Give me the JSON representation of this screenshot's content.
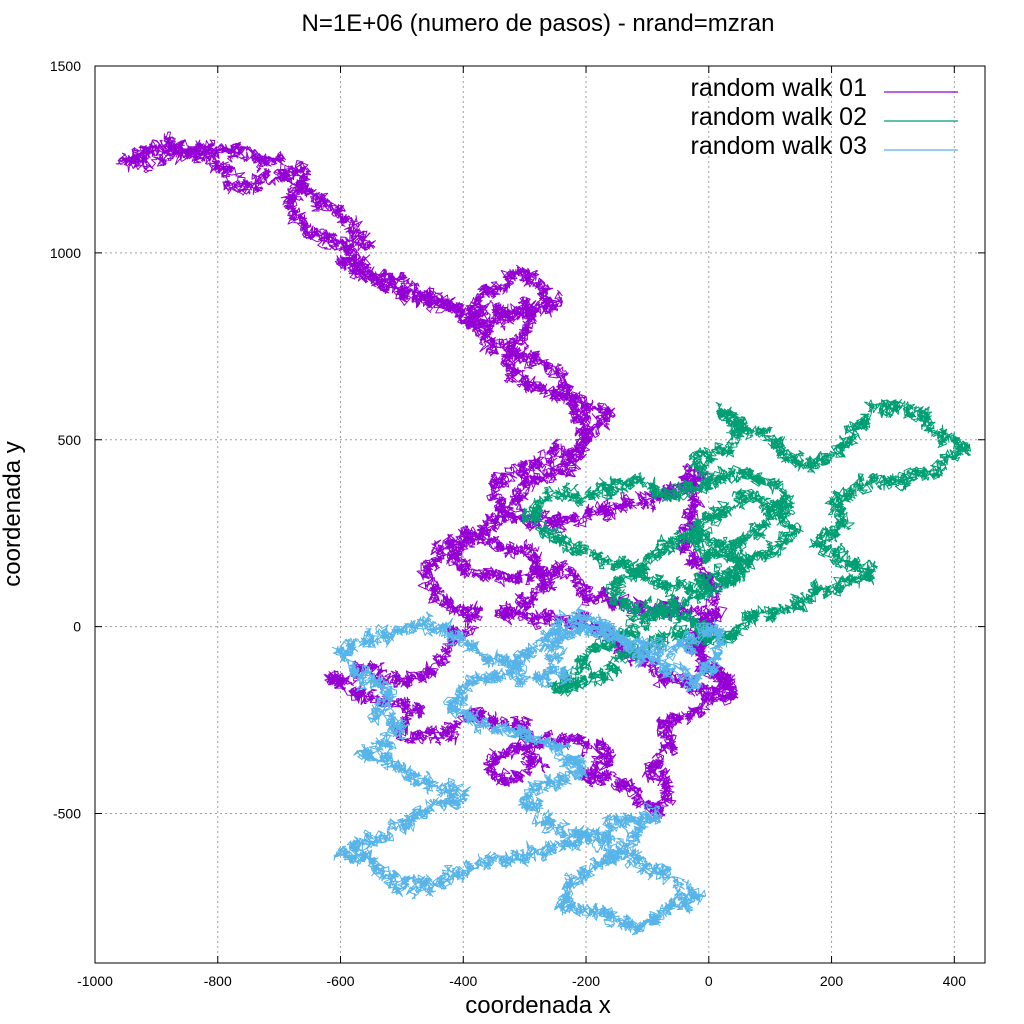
{
  "chart_data": {
    "type": "line",
    "title": "N=1E+06 (numero de pasos) - nrand=mzran",
    "xlabel": "coordenada x",
    "ylabel": "coordenada y",
    "xlim": [
      -1000,
      450
    ],
    "ylim": [
      -900,
      1500
    ],
    "xticks": [
      -1000,
      -800,
      -600,
      -400,
      -200,
      0,
      200,
      400
    ],
    "yticks": [
      -500,
      0,
      500,
      1000,
      1500
    ],
    "grid": true,
    "legend_position": "top-right",
    "series": [
      {
        "name": "random walk 01",
        "color": "#9400d3",
        "waypoints": [
          [
            0,
            0
          ],
          [
            -60,
            60
          ],
          [
            -120,
            50
          ],
          [
            -200,
            80
          ],
          [
            -240,
            150
          ],
          [
            -320,
            130
          ],
          [
            -380,
            140
          ],
          [
            -420,
            180
          ],
          [
            -400,
            240
          ],
          [
            -330,
            300
          ],
          [
            -300,
            380
          ],
          [
            -240,
            410
          ],
          [
            -200,
            500
          ],
          [
            -220,
            580
          ],
          [
            -240,
            660
          ],
          [
            -290,
            720
          ],
          [
            -350,
            760
          ],
          [
            -390,
            820
          ],
          [
            -360,
            900
          ],
          [
            -300,
            960
          ],
          [
            -270,
            910
          ],
          [
            -250,
            860
          ],
          [
            -330,
            840
          ],
          [
            -400,
            850
          ],
          [
            -460,
            880
          ],
          [
            -520,
            900
          ],
          [
            -560,
            950
          ],
          [
            -590,
            1020
          ],
          [
            -660,
            1060
          ],
          [
            -690,
            1140
          ],
          [
            -650,
            1190
          ],
          [
            -680,
            1230
          ],
          [
            -740,
            1260
          ],
          [
            -800,
            1280
          ],
          [
            -870,
            1270
          ],
          [
            -930,
            1250
          ],
          [
            -950,
            1245
          ],
          [
            -880,
            1300
          ],
          [
            -810,
            1250
          ],
          [
            -760,
            1180
          ],
          [
            -700,
            1210
          ],
          [
            -640,
            1150
          ],
          [
            -600,
            1090
          ],
          [
            -560,
            1020
          ],
          [
            -600,
            980
          ],
          [
            -480,
            900
          ],
          [
            -420,
            860
          ],
          [
            -380,
            810
          ],
          [
            -330,
            830
          ],
          [
            -280,
            850
          ],
          [
            -330,
            700
          ],
          [
            -290,
            640
          ],
          [
            -200,
            600
          ],
          [
            -160,
            560
          ],
          [
            -220,
            480
          ],
          [
            -280,
            440
          ],
          [
            -350,
            380
          ],
          [
            -330,
            300
          ],
          [
            -260,
            270
          ],
          [
            -180,
            310
          ],
          [
            -120,
            330
          ],
          [
            -60,
            360
          ],
          [
            -20,
            420
          ],
          [
            -30,
            300
          ],
          [
            -40,
            220
          ],
          [
            0,
            120
          ],
          [
            10,
            30
          ],
          [
            -20,
            -40
          ],
          [
            0,
            -120
          ],
          [
            40,
            -160
          ],
          [
            -20,
            -220
          ],
          [
            -80,
            -260
          ],
          [
            -60,
            -320
          ],
          [
            -100,
            -380
          ],
          [
            -60,
            -430
          ],
          [
            -80,
            -490
          ],
          [
            -140,
            -420
          ],
          [
            -200,
            -400
          ],
          [
            -160,
            -340
          ],
          [
            -220,
            -300
          ],
          [
            -300,
            -320
          ],
          [
            -360,
            -360
          ],
          [
            -340,
            -410
          ],
          [
            -280,
            -380
          ],
          [
            -300,
            -260
          ],
          [
            -380,
            -240
          ],
          [
            -440,
            -300
          ],
          [
            -500,
            -280
          ],
          [
            -470,
            -230
          ],
          [
            -560,
            -190
          ],
          [
            -620,
            -140
          ],
          [
            -560,
            -120
          ],
          [
            -500,
            -150
          ],
          [
            -440,
            -100
          ],
          [
            -420,
            -30
          ],
          [
            -380,
            40
          ],
          [
            -430,
            60
          ],
          [
            -460,
            120
          ],
          [
            -440,
            200
          ],
          [
            -400,
            250
          ],
          [
            -350,
            230
          ],
          [
            -290,
            180
          ],
          [
            -260,
            120
          ],
          [
            -300,
            60
          ],
          [
            -340,
            40
          ],
          [
            -260,
            20
          ],
          [
            -180,
            0
          ],
          [
            -130,
            -60
          ],
          [
            -100,
            -100
          ],
          [
            -60,
            -150
          ],
          [
            -10,
            -160
          ],
          [
            40,
            -180
          ],
          [
            10,
            -120
          ],
          [
            -30,
            -60
          ],
          [
            0,
            0
          ]
        ]
      },
      {
        "name": "random walk 02",
        "color": "#009e73",
        "waypoints": [
          [
            0,
            0
          ],
          [
            -60,
            30
          ],
          [
            -120,
            50
          ],
          [
            -160,
            100
          ],
          [
            -120,
            150
          ],
          [
            -180,
            190
          ],
          [
            -240,
            230
          ],
          [
            -300,
            290
          ],
          [
            -260,
            340
          ],
          [
            -190,
            360
          ],
          [
            -120,
            390
          ],
          [
            -60,
            340
          ],
          [
            0,
            380
          ],
          [
            -20,
            440
          ],
          [
            30,
            480
          ],
          [
            50,
            540
          ],
          [
            20,
            570
          ],
          [
            80,
            520
          ],
          [
            120,
            470
          ],
          [
            160,
            430
          ],
          [
            200,
            460
          ],
          [
            240,
            530
          ],
          [
            280,
            590
          ],
          [
            340,
            580
          ],
          [
            370,
            520
          ],
          [
            420,
            480
          ],
          [
            380,
            440
          ],
          [
            320,
            400
          ],
          [
            250,
            380
          ],
          [
            200,
            330
          ],
          [
            220,
            270
          ],
          [
            180,
            220
          ],
          [
            230,
            170
          ],
          [
            270,
            150
          ],
          [
            210,
            110
          ],
          [
            160,
            80
          ],
          [
            120,
            40
          ],
          [
            80,
            30
          ],
          [
            40,
            0
          ],
          [
            20,
            -40
          ],
          [
            -20,
            -20
          ],
          [
            -80,
            -40
          ],
          [
            -120,
            -60
          ],
          [
            -160,
            -110
          ],
          [
            -200,
            -150
          ],
          [
            -250,
            -170
          ],
          [
            -220,
            -120
          ],
          [
            -160,
            -40
          ],
          [
            -100,
            20
          ],
          [
            -60,
            60
          ],
          [
            -20,
            80
          ],
          [
            40,
            120
          ],
          [
            60,
            170
          ],
          [
            20,
            220
          ],
          [
            -40,
            250
          ],
          [
            -80,
            200
          ],
          [
            -120,
            150
          ],
          [
            -70,
            100
          ],
          [
            -10,
            120
          ],
          [
            40,
            160
          ],
          [
            100,
            200
          ],
          [
            140,
            260
          ],
          [
            110,
            320
          ],
          [
            60,
            350
          ],
          [
            10,
            300
          ],
          [
            -30,
            240
          ],
          [
            0,
            180
          ],
          [
            50,
            220
          ],
          [
            90,
            280
          ],
          [
            130,
            340
          ],
          [
            80,
            400
          ],
          [
            30,
            420
          ],
          [
            0,
            380
          ]
        ]
      },
      {
        "name": "random walk 03",
        "color": "#56b4e9",
        "waypoints": [
          [
            0,
            0
          ],
          [
            -40,
            -50
          ],
          [
            -100,
            -60
          ],
          [
            -160,
            -30
          ],
          [
            -220,
            -10
          ],
          [
            -260,
            -60
          ],
          [
            -230,
            -120
          ],
          [
            -300,
            -140
          ],
          [
            -340,
            -90
          ],
          [
            -380,
            -60
          ],
          [
            -420,
            -20
          ],
          [
            -460,
            10
          ],
          [
            -500,
            -10
          ],
          [
            -560,
            -30
          ],
          [
            -600,
            -60
          ],
          [
            -580,
            -120
          ],
          [
            -520,
            -170
          ],
          [
            -540,
            -230
          ],
          [
            -500,
            -280
          ],
          [
            -560,
            -330
          ],
          [
            -500,
            -380
          ],
          [
            -460,
            -420
          ],
          [
            -400,
            -450
          ],
          [
            -460,
            -500
          ],
          [
            -520,
            -540
          ],
          [
            -560,
            -580
          ],
          [
            -600,
            -600
          ],
          [
            -540,
            -640
          ],
          [
            -500,
            -700
          ],
          [
            -440,
            -680
          ],
          [
            -380,
            -640
          ],
          [
            -320,
            -620
          ],
          [
            -260,
            -600
          ],
          [
            -200,
            -560
          ],
          [
            -140,
            -520
          ],
          [
            -90,
            -500
          ],
          [
            -120,
            -560
          ],
          [
            -160,
            -620
          ],
          [
            -220,
            -680
          ],
          [
            -240,
            -740
          ],
          [
            -180,
            -770
          ],
          [
            -110,
            -800
          ],
          [
            -70,
            -760
          ],
          [
            -20,
            -730
          ],
          [
            -60,
            -680
          ],
          [
            -100,
            -640
          ],
          [
            -140,
            -600
          ],
          [
            -200,
            -560
          ],
          [
            -260,
            -520
          ],
          [
            -300,
            -460
          ],
          [
            -260,
            -420
          ],
          [
            -200,
            -390
          ],
          [
            -240,
            -330
          ],
          [
            -300,
            -290
          ],
          [
            -360,
            -260
          ],
          [
            -420,
            -220
          ],
          [
            -400,
            -160
          ],
          [
            -340,
            -130
          ],
          [
            -300,
            -80
          ],
          [
            -260,
            -20
          ],
          [
            -220,
            30
          ],
          [
            -180,
            10
          ],
          [
            -140,
            -40
          ],
          [
            -100,
            -80
          ],
          [
            -60,
            -120
          ],
          [
            -20,
            -150
          ],
          [
            10,
            -90
          ],
          [
            20,
            -40
          ],
          [
            0,
            0
          ]
        ]
      }
    ]
  }
}
